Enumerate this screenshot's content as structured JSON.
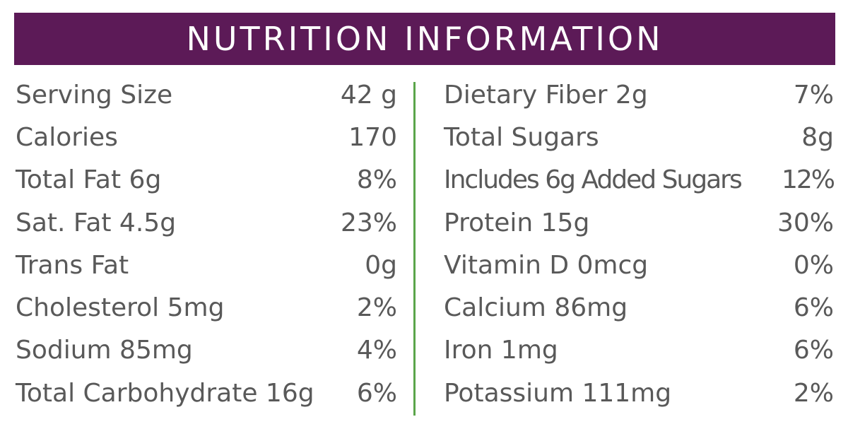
{
  "title": "NUTRITION INFORMATION",
  "left": [
    {
      "label": "Serving Size",
      "value": "42 g"
    },
    {
      "label": "Calories",
      "value": "170"
    },
    {
      "label": "Total Fat 6g",
      "value": "8%"
    },
    {
      "label": "Sat. Fat 4.5g",
      "value": "23%"
    },
    {
      "label": "Trans Fat",
      "value": "0g"
    },
    {
      "label": "Cholesterol 5mg",
      "value": "2%"
    },
    {
      "label": "Sodium 85mg",
      "value": "4%"
    },
    {
      "label": "Total Carbohydrate 16g",
      "value": "6%"
    }
  ],
  "right": [
    {
      "label": "Dietary Fiber 2g",
      "value": "7%"
    },
    {
      "label": "Total Sugars",
      "value": "8g"
    },
    {
      "label": "Includes 6g Added Sugars",
      "value": "12%"
    },
    {
      "label": "Protein 15g",
      "value": "30%"
    },
    {
      "label": "Vitamin D 0mcg",
      "value": "0%"
    },
    {
      "label": "Calcium 86mg",
      "value": "6%"
    },
    {
      "label": "Iron 1mg",
      "value": "6%"
    },
    {
      "label": "Potassium 111mg",
      "value": "2%"
    }
  ],
  "colors": {
    "banner": "#5c1a57",
    "divider": "#5aa54a",
    "text": "#595959"
  }
}
